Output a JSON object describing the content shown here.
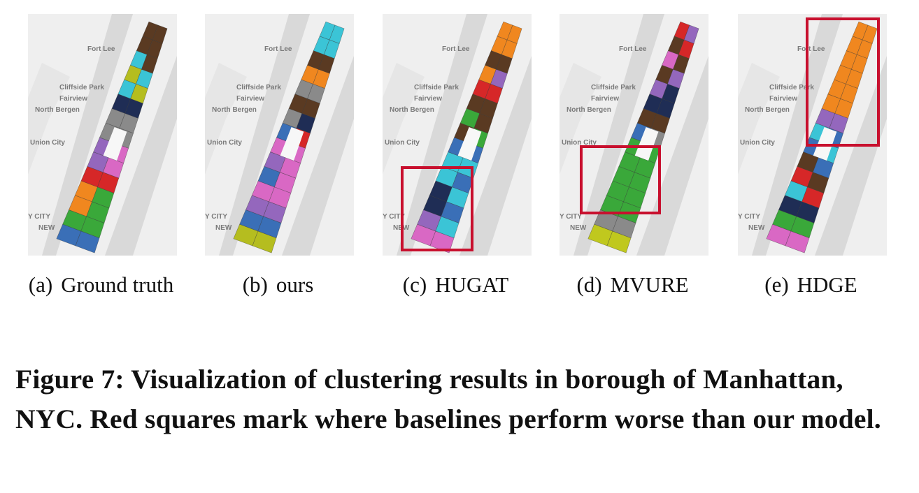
{
  "panels": [
    {
      "label": "(a)",
      "name": "Ground truth"
    },
    {
      "label": "(b)",
      "name": "ours"
    },
    {
      "label": "(c)",
      "name": "HUGAT"
    },
    {
      "label": "(d)",
      "name": "MVURE"
    },
    {
      "label": "(e)",
      "name": "HDGE"
    }
  ],
  "map_labels": [
    "Fort Lee",
    "Cliffside Park",
    "Fairview",
    "North Bergen",
    "Union City",
    "Y CITY",
    "NEW"
  ],
  "caption": "Figure 7: Visualization of clustering results in borough of Manhattan, NYC. Red squares mark where baselines perform worse than our model."
}
